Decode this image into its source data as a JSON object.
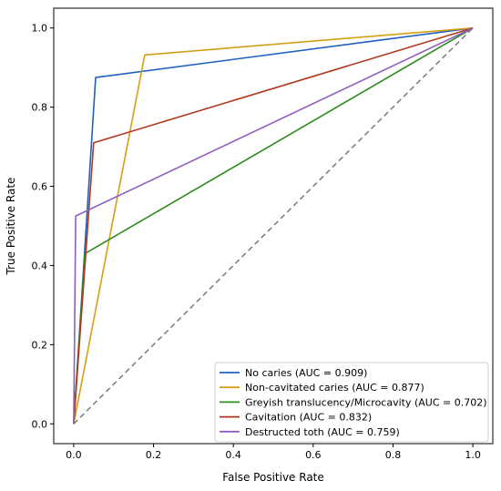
{
  "chart_data": {
    "type": "line",
    "title": "",
    "xlabel": "False Positive Rate",
    "ylabel": "True Positive Rate",
    "xlim": [
      -0.05,
      1.05
    ],
    "ylim": [
      -0.05,
      1.05
    ],
    "xticks": [
      "0.0",
      "0.2",
      "0.4",
      "0.6",
      "0.8",
      "1.0"
    ],
    "yticks": [
      "0.0",
      "0.2",
      "0.4",
      "0.6",
      "0.8",
      "1.0"
    ],
    "grid": false,
    "legend_position": "lower-right",
    "series": [
      {
        "name": "No caries (AUC = 0.909)",
        "color": "#1f5fbf",
        "x": [
          0,
          0.055,
          1
        ],
        "y": [
          0,
          0.875,
          1
        ]
      },
      {
        "name": "Non-cavitated caries (AUC = 0.877)",
        "color": "#d4a017",
        "x": [
          0,
          0.178,
          1
        ],
        "y": [
          0,
          0.932,
          1
        ]
      },
      {
        "name": "Greyish translucency/Microcavity (AUC = 0.702)",
        "color": "#2e8b1e",
        "x": [
          0,
          0.028,
          1
        ],
        "y": [
          0,
          0.43,
          1
        ]
      },
      {
        "name": "Cavitation (AUC = 0.832)",
        "color": "#b03a1e",
        "x": [
          0,
          0.05,
          1
        ],
        "y": [
          0,
          0.71,
          1
        ]
      },
      {
        "name": "Destructed toth (AUC = 0.759)",
        "color": "#8e5fbf",
        "x": [
          0,
          0.005,
          1
        ],
        "y": [
          0,
          0.525,
          1
        ]
      }
    ],
    "reference_line": {
      "x": [
        0,
        1
      ],
      "y": [
        0,
        1
      ],
      "color": "#808080",
      "style": "dashed"
    }
  }
}
